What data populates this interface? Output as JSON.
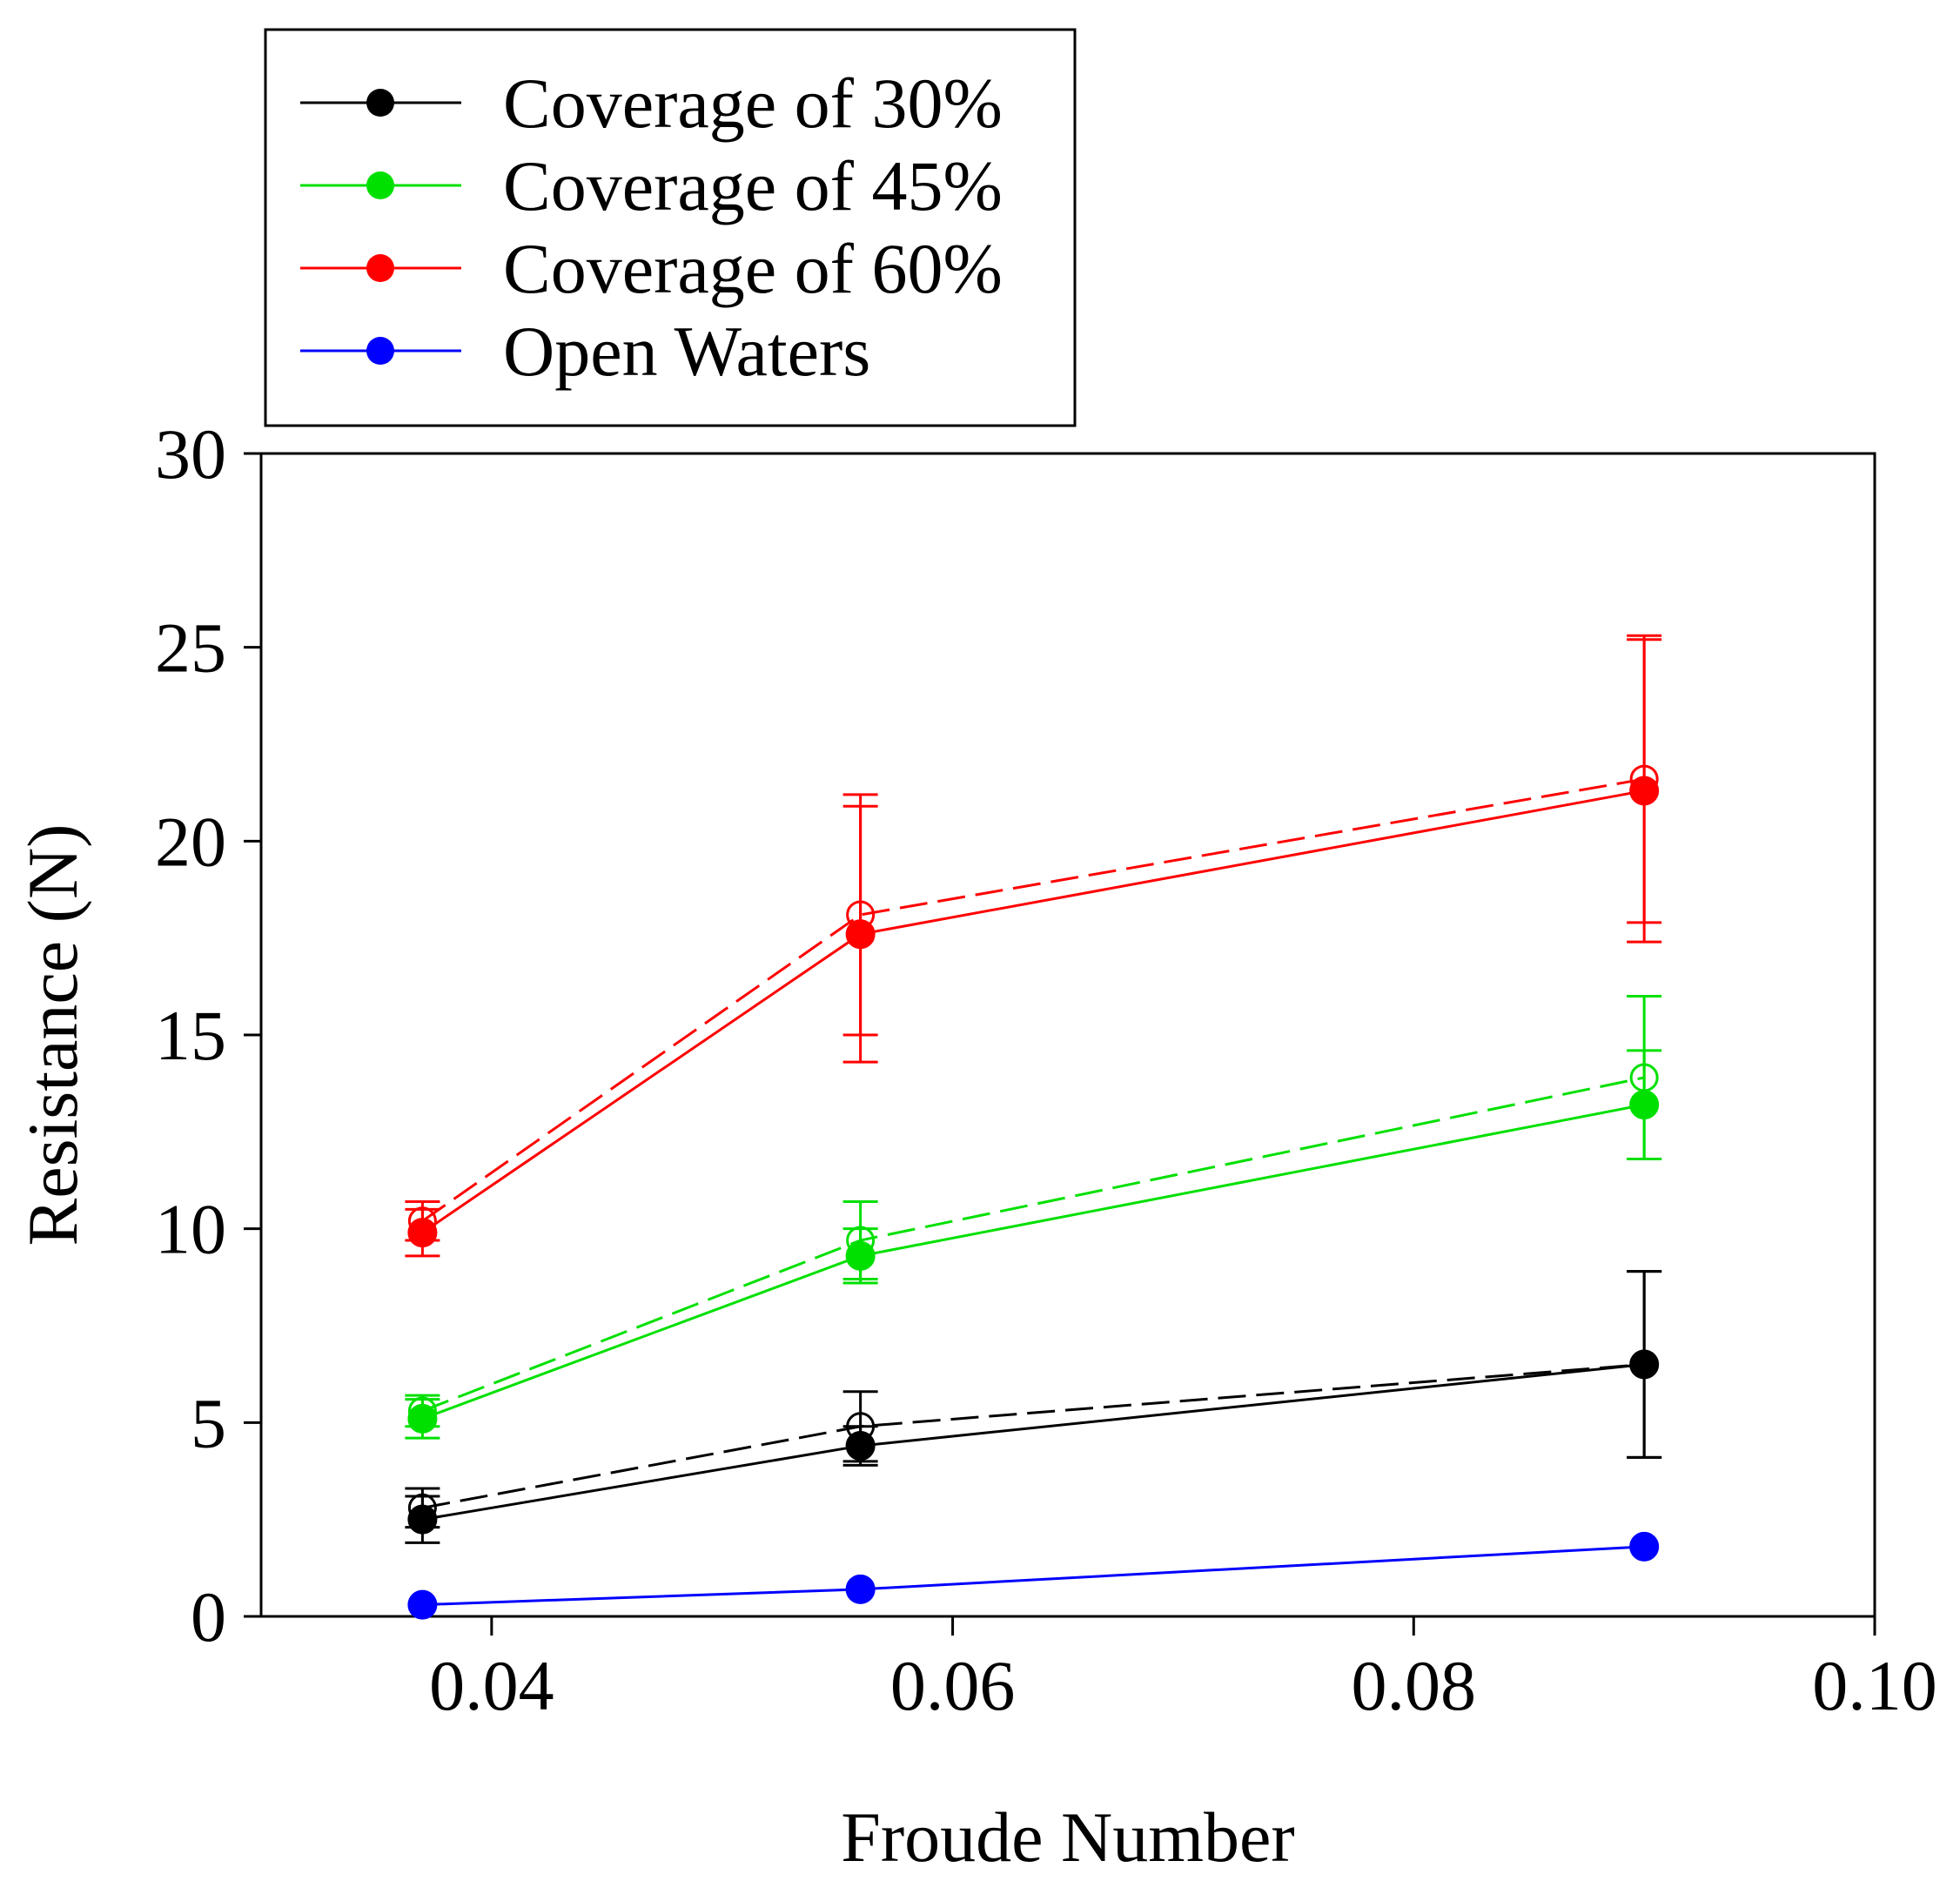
{
  "chart_data": {
    "type": "line",
    "title": "",
    "xlabel": "Froude Number",
    "ylabel": "Resistance (N)",
    "xlim": [
      0.03,
      0.1
    ],
    "ylim": [
      0,
      30
    ],
    "xticks": [
      0.04,
      0.06,
      0.08,
      0.1
    ],
    "xtick_labels": [
      "0.04",
      "0.06",
      "0.08",
      "0.10"
    ],
    "yticks": [
      0,
      5,
      10,
      15,
      20,
      25,
      30
    ],
    "ytick_labels": [
      "0",
      "5",
      "10",
      "15",
      "20",
      "25",
      "30"
    ],
    "grid": false,
    "legend_position": "top-left, outside above plot",
    "x": [
      0.037,
      0.056,
      0.09
    ],
    "series": [
      {
        "name": "Coverage of 30%",
        "color": "#000000",
        "values": [
          2.5,
          4.4,
          6.5
        ],
        "errors": [
          0.6,
          0.5,
          2.4
        ],
        "dashed_values": [
          2.8,
          4.9,
          6.5
        ],
        "dashed_errors": [
          0.5,
          0.9,
          2.4
        ]
      },
      {
        "name": "Coverage of 45%",
        "color": "#00e000",
        "values": [
          5.1,
          9.3,
          13.2
        ],
        "errors": [
          0.5,
          0.7,
          1.4
        ],
        "dashed_values": [
          5.3,
          9.7,
          13.9
        ],
        "dashed_errors": [
          0.4,
          1.0,
          2.1
        ]
      },
      {
        "name": "Coverage of 60%",
        "color": "#ff0000",
        "values": [
          9.9,
          17.6,
          21.3
        ],
        "errors": [
          0.6,
          3.3,
          3.9
        ],
        "dashed_values": [
          10.2,
          18.1,
          21.6
        ],
        "dashed_errors": [
          0.5,
          3.1,
          3.7
        ]
      },
      {
        "name": "Open Waters",
        "color": "#0000ff",
        "values": [
          0.3,
          0.7,
          1.8
        ]
      }
    ]
  }
}
